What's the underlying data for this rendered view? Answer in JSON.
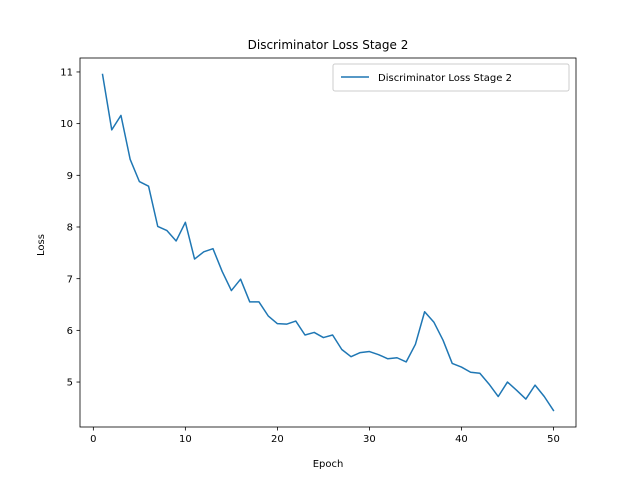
{
  "chart_data": {
    "type": "line",
    "title": "Discriminator Loss Stage 2",
    "xlabel": "Epoch",
    "ylabel": "Loss",
    "xlim": [
      -1.45,
      52.45
    ],
    "ylim": [
      4.13,
      11.27
    ],
    "xticks": [
      0,
      10,
      20,
      30,
      40,
      50
    ],
    "yticks": [
      5,
      6,
      7,
      8,
      9,
      10,
      11
    ],
    "grid": false,
    "legend_position": "top-right",
    "series": [
      {
        "name": "Discriminator Loss Stage 2",
        "color": "#1f77b4",
        "x": [
          1,
          2,
          3,
          4,
          5,
          6,
          7,
          8,
          9,
          10,
          11,
          12,
          13,
          14,
          15,
          16,
          17,
          18,
          19,
          20,
          21,
          22,
          23,
          24,
          25,
          26,
          27,
          28,
          29,
          30,
          31,
          32,
          33,
          34,
          35,
          36,
          37,
          38,
          39,
          40,
          41,
          42,
          43,
          44,
          45,
          46,
          47,
          48,
          49,
          50
        ],
        "y": [
          10.95,
          9.88,
          10.16,
          9.31,
          8.88,
          8.79,
          8.01,
          7.93,
          7.73,
          8.09,
          7.38,
          7.52,
          7.58,
          7.14,
          6.77,
          6.99,
          6.55,
          6.55,
          6.28,
          6.13,
          6.12,
          6.18,
          5.91,
          5.96,
          5.86,
          5.91,
          5.63,
          5.49,
          5.57,
          5.59,
          5.53,
          5.45,
          5.47,
          5.39,
          5.73,
          6.36,
          6.16,
          5.81,
          5.36,
          5.29,
          5.19,
          5.17,
          4.96,
          4.72,
          5.0,
          4.84,
          4.67,
          4.94,
          4.72,
          4.45
        ]
      }
    ]
  }
}
